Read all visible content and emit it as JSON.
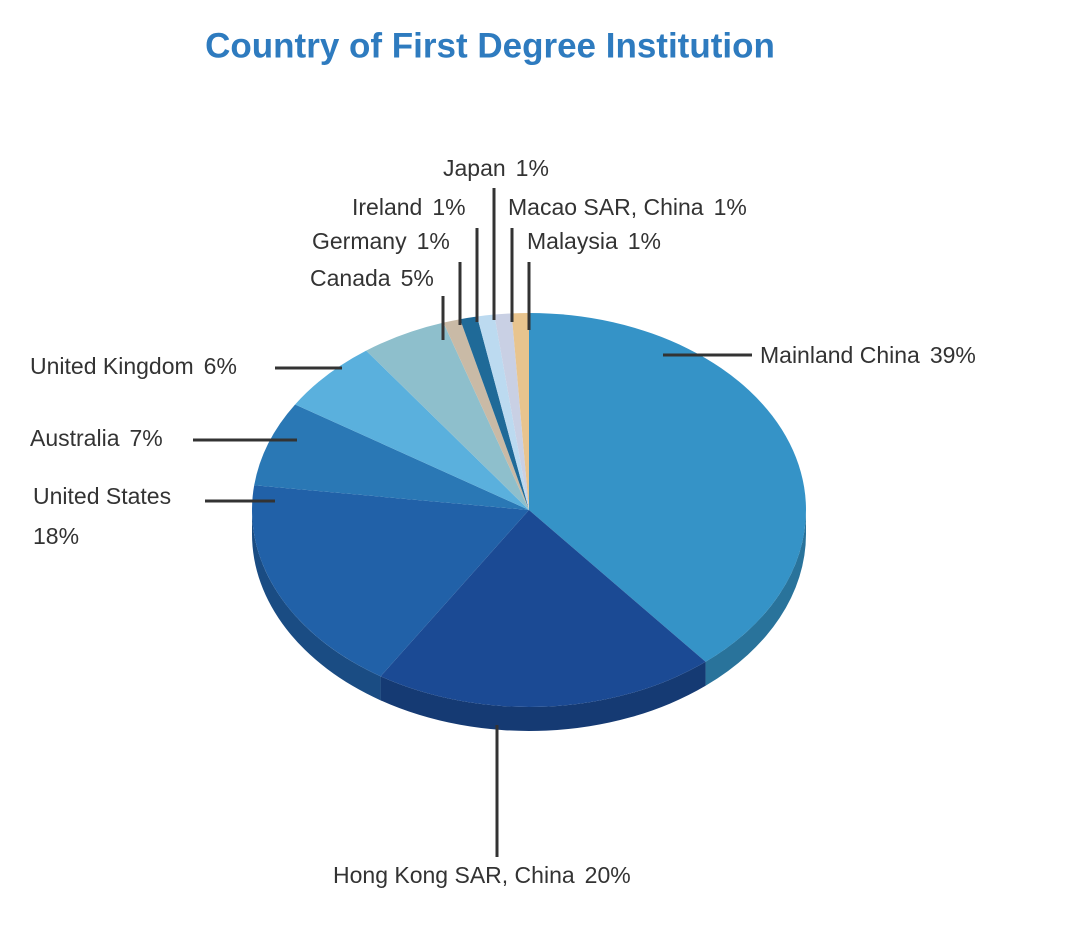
{
  "chart_data": {
    "type": "pie",
    "title": "Country of First Degree Institution",
    "categories": [
      "Mainland China",
      "Hong Kong SAR, China",
      "United States",
      "Australia",
      "United Kingdom",
      "Canada",
      "Germany",
      "Ireland",
      "Japan",
      "Macao SAR, China",
      "Malaysia"
    ],
    "values": [
      39,
      20,
      18,
      7,
      6,
      5,
      1,
      1,
      1,
      1,
      1
    ],
    "value_labels": [
      "39%",
      "20%",
      "18%",
      "7%",
      "6%",
      "5%",
      "1%",
      "1%",
      "1%",
      "1%",
      "1%"
    ],
    "colors": [
      "#3593c7",
      "#1b4a94",
      "#2161a8",
      "#2a78b5",
      "#5ab0dd",
      "#8ebfcc",
      "#c9baa6",
      "#1f6a98",
      "#bcdaf0",
      "#c9d0e4",
      "#e8c48e"
    ]
  }
}
